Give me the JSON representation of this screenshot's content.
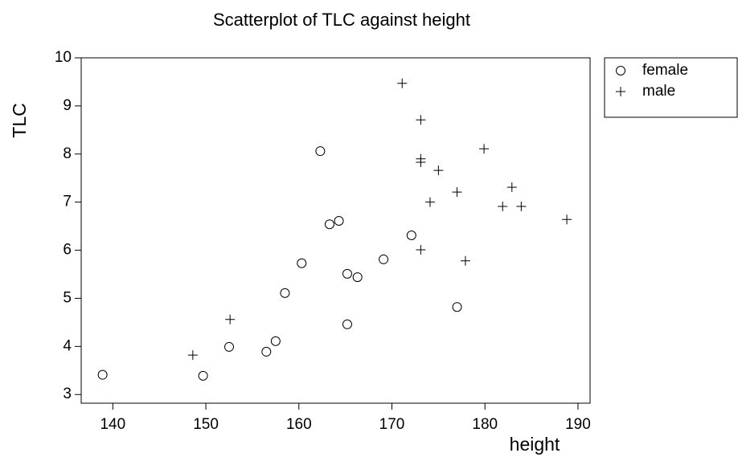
{
  "chart_data": {
    "type": "scatter",
    "title": "Scatterplot of TLC against height",
    "x_label": "height",
    "y_label": "TLC",
    "xlim": [
      136.6,
      191.3
    ],
    "ylim": [
      2.82,
      10.0
    ],
    "xticks": [
      140,
      150,
      160,
      170,
      180,
      190
    ],
    "yticks": [
      3,
      4,
      5,
      6,
      7,
      8,
      9,
      10
    ],
    "grid": false,
    "legend": "outside-right",
    "series": [
      {
        "name": "female",
        "marker": "circle",
        "color": "#000000",
        "x": [
          138.9,
          149.7,
          152.5,
          156.5,
          157.5,
          158.5,
          160.3,
          162.3,
          163.3,
          164.3,
          165.2,
          165.2,
          166.3,
          169.1,
          172.1,
          177.0
        ],
        "values": [
          3.41,
          3.39,
          3.99,
          3.89,
          4.11,
          5.11,
          5.73,
          8.06,
          6.54,
          6.61,
          5.51,
          4.46,
          5.44,
          5.81,
          6.31,
          4.82
        ]
      },
      {
        "name": "male",
        "marker": "plus",
        "color": "#000000",
        "x": [
          148.6,
          152.6,
          171.1,
          173.1,
          173.1,
          173.1,
          173.1,
          174.1,
          175.0,
          177.0,
          177.9,
          179.9,
          181.9,
          182.9,
          183.9,
          188.8
        ],
        "values": [
          3.82,
          4.56,
          9.47,
          8.71,
          7.9,
          7.83,
          6.01,
          7.0,
          7.66,
          7.21,
          5.78,
          8.11,
          6.91,
          7.31,
          6.91,
          6.64
        ]
      }
    ]
  }
}
